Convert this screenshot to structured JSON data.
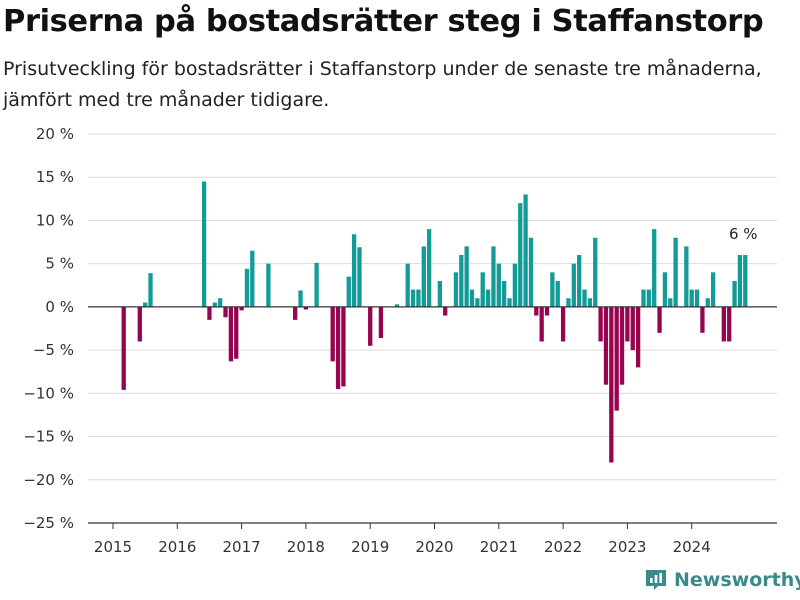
{
  "header": {
    "title": "Priserna på bostadsrätter steg i Staffanstorp",
    "subtitle": "Prisutveckling för bostadsrätter i Staffanstorp under de senaste tre månaderna, jämfört med tre månader tidigare."
  },
  "branding": {
    "logo_text": "Newsworthy",
    "logo_icon": "bar-chart-icon"
  },
  "colors": {
    "positive": "#139c97",
    "negative": "#96034f",
    "grid": "#dcdcdc",
    "axis": "#333333"
  },
  "chart_data": {
    "type": "bar",
    "x_axis": "monthly, 2015–2024",
    "y_unit": "%",
    "ylim": [
      -25,
      20
    ],
    "y_ticks": [
      20,
      15,
      10,
      5,
      0,
      -5,
      -10,
      -15,
      -20,
      -25
    ],
    "y_tick_labels": [
      "20 %",
      "15 %",
      "10 %",
      "5 %",
      "0 %",
      "−5 %",
      "−10 %",
      "−15 %",
      "−20 %",
      "−25 %"
    ],
    "x_tick_labels": [
      "2015",
      "2016",
      "2017",
      "2018",
      "2019",
      "2020",
      "2021",
      "2022",
      "2023",
      "2024"
    ],
    "grid": true,
    "annotation": {
      "text": "6 %",
      "target": "last bar"
    },
    "bars": [
      {
        "date": "2015-03",
        "value": -9.6
      },
      {
        "date": "2015-06",
        "value": -4.0
      },
      {
        "date": "2015-07",
        "value": 0.5
      },
      {
        "date": "2015-08",
        "value": 3.9
      },
      {
        "date": "2016-06",
        "value": 14.5
      },
      {
        "date": "2016-07",
        "value": -1.5
      },
      {
        "date": "2016-08",
        "value": 0.5
      },
      {
        "date": "2016-09",
        "value": 1.0
      },
      {
        "date": "2016-10",
        "value": -1.2
      },
      {
        "date": "2016-11",
        "value": -6.3
      },
      {
        "date": "2016-12",
        "value": -6.0
      },
      {
        "date": "2017-01",
        "value": -0.4
      },
      {
        "date": "2017-02",
        "value": 4.4
      },
      {
        "date": "2017-03",
        "value": 6.5
      },
      {
        "date": "2017-06",
        "value": 5.0
      },
      {
        "date": "2017-11",
        "value": -1.5
      },
      {
        "date": "2017-12",
        "value": 1.9
      },
      {
        "date": "2018-01",
        "value": -0.3
      },
      {
        "date": "2018-03",
        "value": 5.1
      },
      {
        "date": "2018-06",
        "value": -6.3
      },
      {
        "date": "2018-07",
        "value": -9.5
      },
      {
        "date": "2018-08",
        "value": -9.2
      },
      {
        "date": "2018-09",
        "value": 3.5
      },
      {
        "date": "2018-10",
        "value": 8.4
      },
      {
        "date": "2018-11",
        "value": 6.9
      },
      {
        "date": "2019-01",
        "value": -4.5
      },
      {
        "date": "2019-03",
        "value": -3.6
      },
      {
        "date": "2019-06",
        "value": 0.3
      },
      {
        "date": "2019-08",
        "value": 5.0
      },
      {
        "date": "2019-09",
        "value": 2.0
      },
      {
        "date": "2019-10",
        "value": 2.0
      },
      {
        "date": "2019-11",
        "value": 7.0
      },
      {
        "date": "2019-12",
        "value": 9.0
      },
      {
        "date": "2020-02",
        "value": 3.0
      },
      {
        "date": "2020-03",
        "value": -1.0
      },
      {
        "date": "2020-05",
        "value": 4.0
      },
      {
        "date": "2020-06",
        "value": 6.0
      },
      {
        "date": "2020-07",
        "value": 7.0
      },
      {
        "date": "2020-08",
        "value": 2.0
      },
      {
        "date": "2020-09",
        "value": 1.0
      },
      {
        "date": "2020-10",
        "value": 4.0
      },
      {
        "date": "2020-11",
        "value": 2.0
      },
      {
        "date": "2020-12",
        "value": 7.0
      },
      {
        "date": "2021-01",
        "value": 5.0
      },
      {
        "date": "2021-02",
        "value": 3.0
      },
      {
        "date": "2021-03",
        "value": 1.0
      },
      {
        "date": "2021-04",
        "value": 5.0
      },
      {
        "date": "2021-05",
        "value": 12.0
      },
      {
        "date": "2021-06",
        "value": 13.0
      },
      {
        "date": "2021-07",
        "value": 8.0
      },
      {
        "date": "2021-08",
        "value": -1.0
      },
      {
        "date": "2021-09",
        "value": -4.0
      },
      {
        "date": "2021-10",
        "value": -1.0
      },
      {
        "date": "2021-11",
        "value": 4.0
      },
      {
        "date": "2021-12",
        "value": 3.0
      },
      {
        "date": "2022-01",
        "value": -4.0
      },
      {
        "date": "2022-02",
        "value": 1.0
      },
      {
        "date": "2022-03",
        "value": 5.0
      },
      {
        "date": "2022-04",
        "value": 6.0
      },
      {
        "date": "2022-05",
        "value": 2.0
      },
      {
        "date": "2022-06",
        "value": 1.0
      },
      {
        "date": "2022-07",
        "value": 8.0
      },
      {
        "date": "2022-08",
        "value": -4.0
      },
      {
        "date": "2022-09",
        "value": -9.0
      },
      {
        "date": "2022-10",
        "value": -18.0
      },
      {
        "date": "2022-11",
        "value": -12.0
      },
      {
        "date": "2022-12",
        "value": -9.0
      },
      {
        "date": "2023-01",
        "value": -4.0
      },
      {
        "date": "2023-02",
        "value": -5.0
      },
      {
        "date": "2023-03",
        "value": -7.0
      },
      {
        "date": "2023-04",
        "value": 2.0
      },
      {
        "date": "2023-05",
        "value": 2.0
      },
      {
        "date": "2023-06",
        "value": 9.0
      },
      {
        "date": "2023-07",
        "value": -3.0
      },
      {
        "date": "2023-08",
        "value": 4.0
      },
      {
        "date": "2023-09",
        "value": 1.0
      },
      {
        "date": "2023-10",
        "value": 8.0
      },
      {
        "date": "2023-12",
        "value": 7.0
      },
      {
        "date": "2024-01",
        "value": 2.0
      },
      {
        "date": "2024-02",
        "value": 2.0
      },
      {
        "date": "2024-03",
        "value": -3.0
      },
      {
        "date": "2024-04",
        "value": 1.0
      },
      {
        "date": "2024-05",
        "value": 4.0
      },
      {
        "date": "2024-07",
        "value": -4.0
      },
      {
        "date": "2024-08",
        "value": -4.0
      },
      {
        "date": "2024-09",
        "value": 3.0
      },
      {
        "date": "2024-10",
        "value": 6.0
      },
      {
        "date": "2024-11",
        "value": 6.0
      }
    ]
  }
}
